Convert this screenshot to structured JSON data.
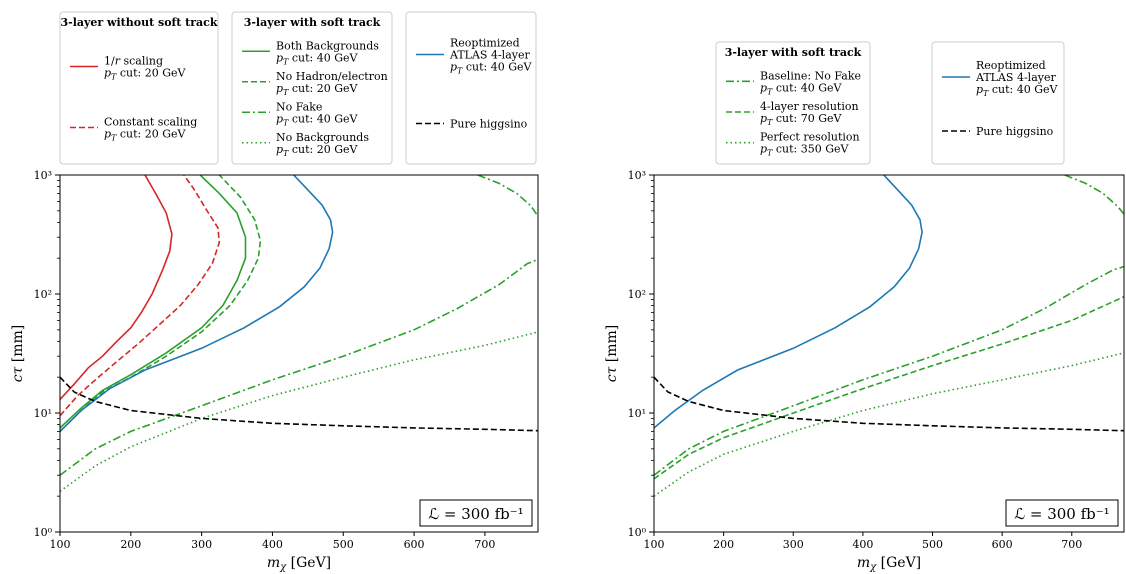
{
  "chart_data": [
    {
      "type": "line",
      "xlabel": "m_χ [GeV]",
      "ylabel": "cτ [mm]",
      "xlim": [
        100,
        775
      ],
      "ylim": [
        1,
        1000
      ],
      "yscale": "log",
      "x_ticks": [
        100,
        200,
        300,
        400,
        500,
        600,
        700
      ],
      "y_ticks": [
        {
          "value": 1,
          "label": "10⁰"
        },
        {
          "value": 10,
          "label": "10¹"
        },
        {
          "value": 100,
          "label": "10²"
        },
        {
          "value": 1000,
          "label": "10³"
        }
      ],
      "annotation": "ℒ = 300 fb⁻¹",
      "legend_groups": [
        {
          "title": "3-layer without soft track",
          "entries": [
            {
              "series": 0,
              "line1": "1/r scaling",
              "line2": "p_T cut: 20 GeV"
            },
            {
              "series": 1,
              "line1": "Constant scaling",
              "line2": "p_T cut: 20 GeV"
            }
          ]
        },
        {
          "title": "3-layer with soft track",
          "entries": [
            {
              "series": 2,
              "line1": "Both Backgrounds",
              "line2": "p_T cut: 40 GeV"
            },
            {
              "series": 3,
              "line1": "No Hadron/electron",
              "line2": "p_T cut: 20 GeV"
            },
            {
              "series": 4,
              "line1": "No Fake",
              "line2": "p_T cut: 40 GeV"
            },
            {
              "series": 5,
              "line1": "No Backgrounds",
              "line2": "p_T cut: 20 GeV"
            }
          ]
        },
        {
          "title": "",
          "entries": [
            {
              "series": 6,
              "line0": "Reoptimized",
              "line1": "ATLAS 4-layer",
              "line2": "p_T cut: 40 GeV"
            },
            {
              "series": 7,
              "line1": "Pure higgsino",
              "line2": ""
            }
          ]
        }
      ],
      "series": [
        {
          "color": "#d62728",
          "dash": "solid",
          "points": [
            [
              100,
              13
            ],
            [
              120,
              17.5
            ],
            [
              140,
              24
            ],
            [
              160,
              30
            ],
            [
              180,
              40
            ],
            [
              200,
              52
            ],
            [
              215,
              70
            ],
            [
              230,
              100
            ],
            [
              245,
              160
            ],
            [
              255,
              230
            ],
            [
              258,
              320
            ],
            [
              250,
              480
            ],
            [
              235,
              700
            ],
            [
              220,
              1000
            ]
          ]
        },
        {
          "color": "#d62728",
          "dash": "dashed",
          "points": [
            [
              100,
              9.5
            ],
            [
              125,
              14
            ],
            [
              150,
              19
            ],
            [
              180,
              27
            ],
            [
              210,
              38
            ],
            [
              240,
              55
            ],
            [
              270,
              80
            ],
            [
              295,
              120
            ],
            [
              315,
              180
            ],
            [
              325,
              270
            ],
            [
              323,
              360
            ],
            [
              305,
              530
            ],
            [
              290,
              750
            ],
            [
              275,
              1000
            ]
          ]
        },
        {
          "color": "#2ca02c",
          "dash": "solid",
          "points": [
            [
              100,
              7.5
            ],
            [
              130,
              11
            ],
            [
              160,
              15.5
            ],
            [
              200,
              21
            ],
            [
              250,
              32
            ],
            [
              300,
              52
            ],
            [
              330,
              80
            ],
            [
              350,
              130
            ],
            [
              362,
              200
            ],
            [
              362,
              300
            ],
            [
              350,
              480
            ],
            [
              325,
              700
            ],
            [
              298,
              1000
            ]
          ]
        },
        {
          "color": "#2ca02c",
          "dash": "dashed",
          "points": [
            [
              100,
              7
            ],
            [
              130,
              10.5
            ],
            [
              160,
              15
            ],
            [
              200,
              20
            ],
            [
              250,
              30
            ],
            [
              300,
              48
            ],
            [
              340,
              80
            ],
            [
              365,
              130
            ],
            [
              380,
              200
            ],
            [
              383,
              280
            ],
            [
              375,
              420
            ],
            [
              355,
              650
            ],
            [
              325,
              1000
            ]
          ]
        },
        {
          "color": "#2ca02c",
          "dash": "dashdot",
          "points": [
            [
              100,
              3
            ],
            [
              150,
              5
            ],
            [
              200,
              7
            ],
            [
              300,
              11.5
            ],
            [
              400,
              19
            ],
            [
              500,
              30
            ],
            [
              600,
              50
            ],
            [
              660,
              75
            ],
            [
              720,
              120
            ],
            [
              760,
              180
            ],
            [
              775,
              195
            ]
          ]
        },
        {
          "color": "#2ca02c",
          "dash": "dotted",
          "points": [
            [
              100,
              2.2
            ],
            [
              150,
              3.6
            ],
            [
              200,
              5.2
            ],
            [
              300,
              9
            ],
            [
              400,
              14
            ],
            [
              500,
              20
            ],
            [
              600,
              28
            ],
            [
              700,
              37
            ],
            [
              775,
              48
            ]
          ]
        },
        {
          "color": "#1f77b4",
          "dash": "solid",
          "points": [
            [
              100,
              7
            ],
            [
              130,
              10.5
            ],
            [
              170,
              16
            ],
            [
              220,
              23
            ],
            [
              300,
              35
            ],
            [
              360,
              52
            ],
            [
              410,
              78
            ],
            [
              445,
              115
            ],
            [
              467,
              165
            ],
            [
              480,
              240
            ],
            [
              485,
              330
            ],
            [
              482,
              420
            ],
            [
              470,
              560
            ],
            [
              450,
              750
            ],
            [
              430,
              1000
            ]
          ]
        },
        {
          "color": "#000000",
          "dash": "dashed",
          "points": [
            [
              100,
              20
            ],
            [
              120,
              15
            ],
            [
              150,
              12.5
            ],
            [
              200,
              10.5
            ],
            [
              300,
              9
            ],
            [
              400,
              8.2
            ],
            [
              500,
              7.8
            ],
            [
              600,
              7.5
            ],
            [
              700,
              7.3
            ],
            [
              775,
              7.1
            ]
          ]
        },
        {
          "color": "#2ca02c",
          "dash": "dashdot",
          "points": [
            [
              690,
              1000
            ],
            [
              720,
              850
            ],
            [
              745,
              700
            ],
            [
              765,
              550
            ],
            [
              775,
              450
            ]
          ]
        }
      ]
    },
    {
      "type": "line",
      "xlabel": "m_χ [GeV]",
      "ylabel": "cτ [mm]",
      "xlim": [
        100,
        775
      ],
      "ylim": [
        1,
        1000
      ],
      "yscale": "log",
      "x_ticks": [
        100,
        200,
        300,
        400,
        500,
        600,
        700
      ],
      "y_ticks": [
        {
          "value": 1,
          "label": "10⁰"
        },
        {
          "value": 10,
          "label": "10¹"
        },
        {
          "value": 100,
          "label": "10²"
        },
        {
          "value": 1000,
          "label": "10³"
        }
      ],
      "annotation": "ℒ = 300 fb⁻¹",
      "legend_groups": [
        {
          "title": "3-layer with soft track",
          "entries": [
            {
              "series": 0,
              "line1": "Baseline: No Fake",
              "line2": "p_T cut: 40 GeV"
            },
            {
              "series": 1,
              "line1": "4-layer resolution",
              "line2": "p_T cut: 70 GeV"
            },
            {
              "series": 2,
              "line1": "Perfect resolution",
              "line2": "p_T cut: 350 GeV"
            }
          ]
        },
        {
          "title": "",
          "entries": [
            {
              "series": 3,
              "line0": "Reoptimized",
              "line1": "ATLAS 4-layer",
              "line2": "p_T cut: 40 GeV"
            },
            {
              "series": 4,
              "line1": "Pure higgsino",
              "line2": ""
            }
          ]
        }
      ],
      "series": [
        {
          "color": "#2ca02c",
          "dash": "dashdot",
          "points": [
            [
              100,
              3
            ],
            [
              150,
              5
            ],
            [
              200,
              7
            ],
            [
              300,
              11.5
            ],
            [
              400,
              19
            ],
            [
              500,
              30
            ],
            [
              600,
              50
            ],
            [
              660,
              75
            ],
            [
              720,
              120
            ],
            [
              760,
              160
            ],
            [
              775,
              170
            ]
          ]
        },
        {
          "color": "#2ca02c",
          "dash": "dashed",
          "points": [
            [
              100,
              2.8
            ],
            [
              150,
              4.5
            ],
            [
              200,
              6.2
            ],
            [
              300,
              10
            ],
            [
              400,
              16
            ],
            [
              500,
              25
            ],
            [
              600,
              38
            ],
            [
              700,
              60
            ],
            [
              775,
              95
            ]
          ]
        },
        {
          "color": "#2ca02c",
          "dash": "dotted",
          "points": [
            [
              100,
              2
            ],
            [
              150,
              3.2
            ],
            [
              200,
              4.5
            ],
            [
              300,
              7
            ],
            [
              400,
              10.5
            ],
            [
              500,
              14.5
            ],
            [
              600,
              19
            ],
            [
              700,
              25
            ],
            [
              775,
              32
            ]
          ]
        },
        {
          "color": "#1f77b4",
          "dash": "solid",
          "points": [
            [
              100,
              7.5
            ],
            [
              130,
              10.5
            ],
            [
              170,
              15.5
            ],
            [
              220,
              23
            ],
            [
              300,
              35
            ],
            [
              360,
              52
            ],
            [
              410,
              78
            ],
            [
              445,
              115
            ],
            [
              467,
              165
            ],
            [
              480,
              240
            ],
            [
              485,
              330
            ],
            [
              482,
              420
            ],
            [
              470,
              560
            ],
            [
              450,
              750
            ],
            [
              430,
              1000
            ]
          ]
        },
        {
          "color": "#000000",
          "dash": "dashed",
          "points": [
            [
              100,
              20
            ],
            [
              120,
              15
            ],
            [
              150,
              12.5
            ],
            [
              200,
              10.5
            ],
            [
              300,
              9
            ],
            [
              400,
              8.2
            ],
            [
              500,
              7.8
            ],
            [
              600,
              7.5
            ],
            [
              700,
              7.3
            ],
            [
              775,
              7.1
            ]
          ]
        },
        {
          "color": "#2ca02c",
          "dash": "dashdot",
          "points": [
            [
              690,
              1000
            ],
            [
              720,
              850
            ],
            [
              745,
              700
            ],
            [
              765,
              550
            ],
            [
              775,
              470
            ]
          ]
        }
      ]
    }
  ]
}
